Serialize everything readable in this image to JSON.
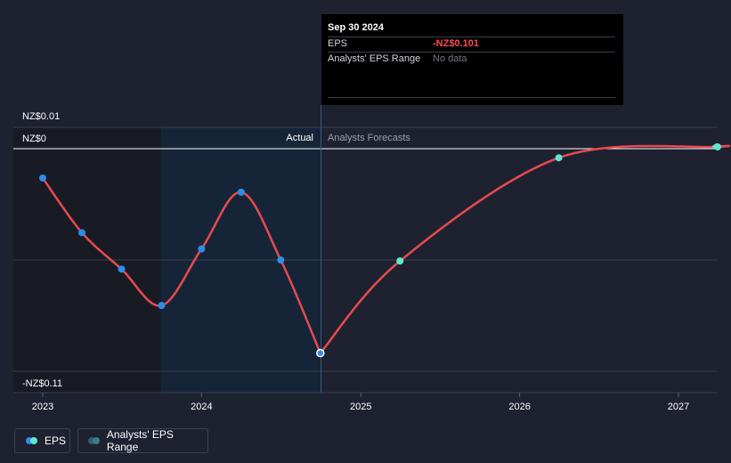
{
  "chart_data": {
    "type": "line",
    "x_ticks": [
      "2023",
      "2024",
      "2025",
      "2026",
      "2027"
    ],
    "y_ticks": [
      "NZ$0.01",
      "NZ$0",
      "-NZ$0.11"
    ],
    "ylim": [
      -0.11,
      0.01
    ],
    "regions": {
      "past_label": "Actual",
      "future_label": "Analysts Forecasts"
    },
    "series": [
      {
        "name": "EPS",
        "actual": [
          {
            "x": "2023-01-01",
            "y": -0.0145
          },
          {
            "x": "2023-04-01",
            "y": -0.0415
          },
          {
            "x": "2023-07-01",
            "y": -0.0595
          },
          {
            "x": "2023-10-01",
            "y": -0.0775
          },
          {
            "x": "2024-01-01",
            "y": -0.0495
          },
          {
            "x": "2024-04-01",
            "y": -0.0215
          },
          {
            "x": "2024-07-01",
            "y": -0.055
          },
          {
            "x": "2024-09-30",
            "y": -0.101
          }
        ],
        "forecast": [
          {
            "x": "2024-09-30",
            "y": -0.101
          },
          {
            "x": "2025-04-01",
            "y": -0.0555
          },
          {
            "x": "2026-04-01",
            "y": -0.0045
          },
          {
            "x": "2027-04-01",
            "y": 0.0009
          }
        ]
      }
    ],
    "colors": {
      "line": "#e84a4f",
      "actual_point": "#2e8ee6",
      "forecast_point": "#5ee8cf"
    },
    "grid": true,
    "legend_position": "bottom-left"
  },
  "tooltip": {
    "date": "Sep 30 2024",
    "eps_label": "EPS",
    "eps_value": "-NZ$0.101",
    "range_label": "Analysts' EPS Range",
    "range_value": "No data"
  },
  "legend": {
    "eps_label": "EPS",
    "range_label": "Analysts' EPS Range"
  }
}
